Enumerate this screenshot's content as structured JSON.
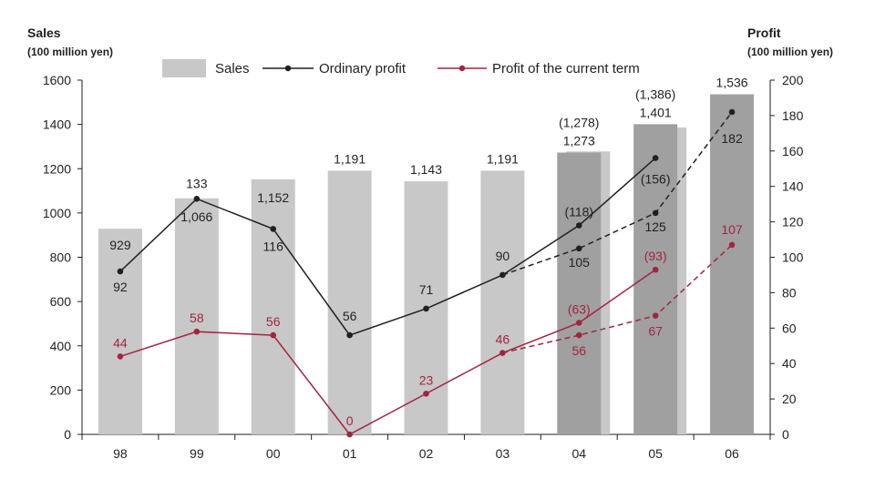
{
  "left_axis": {
    "title": "Sales",
    "unit": "(100 million yen)"
  },
  "right_axis": {
    "title": "Profit",
    "unit": "(100 million yen)"
  },
  "legend": {
    "sales": "Sales",
    "ordinary": "Ordinary profit",
    "current": "Profit of the current term"
  },
  "colors": {
    "bar_actual": "#c8c8c8",
    "bar_forecast": "#a0a0a0",
    "ordinary": "#231f20",
    "current": "#a3243f"
  },
  "chart_data": {
    "type": "bar",
    "categories": [
      "98",
      "99",
      "00",
      "01",
      "02",
      "03",
      "04",
      "05",
      "06"
    ],
    "y_left": {
      "ylim": [
        0,
        1600
      ],
      "ticks": [
        "0",
        "200",
        "400",
        "600",
        "800",
        "1000",
        "1200",
        "1400",
        "1600"
      ]
    },
    "y_right": {
      "ylim": [
        0,
        200
      ],
      "ticks": [
        "0",
        "20",
        "40",
        "60",
        "80",
        "100",
        "120",
        "140",
        "160",
        "180",
        "200"
      ]
    },
    "sales": {
      "name": "Sales",
      "values": [
        929,
        1066,
        1152,
        1191,
        1143,
        1191,
        1273,
        1401,
        1536
      ],
      "labels": [
        "929",
        "1,066",
        "1,152",
        "1,191",
        "1,143",
        "1,191",
        "1,273",
        "1,401",
        "1,536"
      ],
      "forecast": [
        false,
        false,
        false,
        false,
        false,
        false,
        true,
        true,
        true
      ],
      "plan_values": [
        null,
        null,
        null,
        null,
        null,
        null,
        1278,
        1386,
        null
      ],
      "plan_labels": [
        "",
        "",
        "",
        "",
        "",
        "",
        "(1,278)",
        "(1,386)",
        ""
      ]
    },
    "ordinary_profit": {
      "name": "Ordinary profit",
      "actual": [
        92,
        133,
        116,
        56,
        71,
        90,
        105,
        125,
        182
      ],
      "actual_labels": [
        "92",
        "133",
        "116",
        "56",
        "71",
        "90",
        "105",
        "125",
        "182"
      ],
      "plan": [
        null,
        null,
        null,
        null,
        null,
        90,
        118,
        156,
        null
      ],
      "plan_labels": [
        "",
        "",
        "",
        "",
        "",
        "",
        "(118)",
        "(156)",
        ""
      ]
    },
    "current_profit": {
      "name": "Profit of the current term",
      "actual": [
        44,
        58,
        56,
        0,
        23,
        46,
        56,
        67,
        107
      ],
      "actual_labels": [
        "44",
        "58",
        "56",
        "0",
        "23",
        "46",
        "56",
        "67",
        "107"
      ],
      "plan": [
        null,
        null,
        null,
        null,
        null,
        46,
        63,
        93,
        null
      ],
      "plan_labels": [
        "",
        "",
        "",
        "",
        "",
        "",
        "(63)",
        "(93)",
        ""
      ]
    }
  }
}
